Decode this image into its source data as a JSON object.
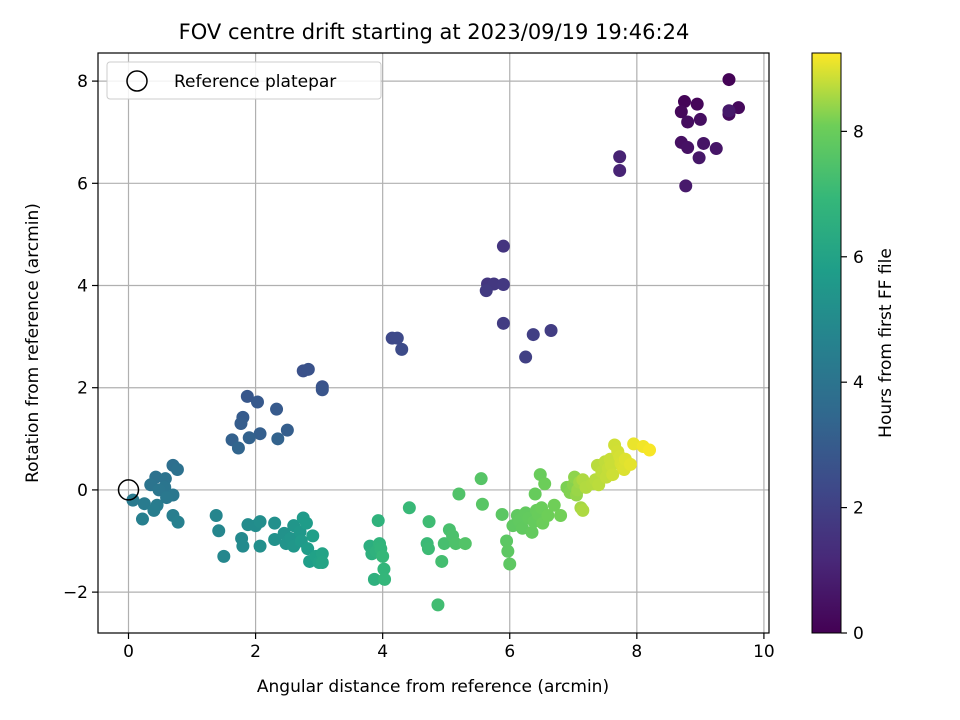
{
  "chart_data": {
    "type": "scatter",
    "title": "FOV centre drift starting at 2023/09/19 19:46:24",
    "xlabel": "Angular distance from reference (arcmin)",
    "ylabel": "Rotation from reference (arcmin)",
    "xlim": [
      -0.48,
      10.08
    ],
    "ylim": [
      -2.8,
      8.55
    ],
    "x_ticks": [
      0,
      2,
      4,
      6,
      8,
      10
    ],
    "y_ticks": [
      -2,
      0,
      2,
      4,
      6,
      8
    ],
    "x_tick_labels": [
      "0",
      "2",
      "4",
      "6",
      "8",
      "10"
    ],
    "y_tick_labels": [
      "−2",
      "0",
      "2",
      "4",
      "6",
      "8"
    ],
    "grid": true,
    "legend": {
      "placement": "upper-left",
      "entries": [
        {
          "label": "Reference platepar",
          "marker": "open-circle",
          "x": 0,
          "y": 0
        }
      ]
    },
    "colorbar": {
      "label": "Hours from first FF file",
      "colormap": "viridis",
      "range": [
        0,
        9.25
      ],
      "ticks": [
        0,
        2,
        4,
        6,
        8
      ],
      "tick_labels": [
        "0",
        "2",
        "4",
        "6",
        "8"
      ]
    },
    "points": [
      [
        9.45,
        8.03,
        0.05
      ],
      [
        8.75,
        7.6,
        0.1
      ],
      [
        8.95,
        7.55,
        0.15
      ],
      [
        8.7,
        7.4,
        0.2
      ],
      [
        9.6,
        7.48,
        0.25
      ],
      [
        9.45,
        7.35,
        0.3
      ],
      [
        8.8,
        7.2,
        0.35
      ],
      [
        9.0,
        7.25,
        0.4
      ],
      [
        8.7,
        6.8,
        0.45
      ],
      [
        8.8,
        6.7,
        0.5
      ],
      [
        9.05,
        6.78,
        0.55
      ],
      [
        9.25,
        6.68,
        0.6
      ],
      [
        8.98,
        6.5,
        0.65
      ],
      [
        9.45,
        7.42,
        0.7
      ],
      [
        8.77,
        5.95,
        0.75
      ],
      [
        7.73,
        6.52,
        1.0
      ],
      [
        7.73,
        6.25,
        1.05
      ],
      [
        5.9,
        4.77,
        1.6
      ],
      [
        5.65,
        4.03,
        1.65
      ],
      [
        5.75,
        4.03,
        1.7
      ],
      [
        5.9,
        4.02,
        1.75
      ],
      [
        5.63,
        3.9,
        1.8
      ],
      [
        5.9,
        3.26,
        1.85
      ],
      [
        6.65,
        3.12,
        1.9
      ],
      [
        6.37,
        3.04,
        1.95
      ],
      [
        6.25,
        2.6,
        2.0
      ],
      [
        4.15,
        2.97,
        2.3
      ],
      [
        4.23,
        2.97,
        2.35
      ],
      [
        4.3,
        2.75,
        2.4
      ],
      [
        2.75,
        2.33,
        2.6
      ],
      [
        2.83,
        2.36,
        2.65
      ],
      [
        3.05,
        2.02,
        2.7
      ],
      [
        3.05,
        1.96,
        2.75
      ],
      [
        1.87,
        1.83,
        2.85
      ],
      [
        2.03,
        1.72,
        2.9
      ],
      [
        2.33,
        1.58,
        2.95
      ],
      [
        1.8,
        1.42,
        3.0
      ],
      [
        1.77,
        1.3,
        3.05
      ],
      [
        2.5,
        1.17,
        3.1
      ],
      [
        2.07,
        1.1,
        3.15
      ],
      [
        1.63,
        0.98,
        3.2
      ],
      [
        1.9,
        1.02,
        3.25
      ],
      [
        2.35,
        1.0,
        3.3
      ],
      [
        1.73,
        0.82,
        3.35
      ],
      [
        0.7,
        0.48,
        3.8
      ],
      [
        0.77,
        0.4,
        3.85
      ],
      [
        0.43,
        0.25,
        3.9
      ],
      [
        0.58,
        0.22,
        3.95
      ],
      [
        0.35,
        0.1,
        4.0
      ],
      [
        0.57,
        0.05,
        4.05
      ],
      [
        0.48,
        0.0,
        4.1
      ],
      [
        0.7,
        -0.1,
        4.15
      ],
      [
        0.6,
        -0.15,
        4.2
      ],
      [
        0.07,
        -0.2,
        4.25
      ],
      [
        0.25,
        -0.27,
        4.3
      ],
      [
        0.45,
        -0.3,
        4.35
      ],
      [
        0.4,
        -0.4,
        4.4
      ],
      [
        0.7,
        -0.5,
        4.45
      ],
      [
        0.22,
        -0.57,
        4.5
      ],
      [
        0.78,
        -0.63,
        4.55
      ],
      [
        1.38,
        -0.5,
        4.75
      ],
      [
        1.42,
        -0.8,
        4.8
      ],
      [
        1.5,
        -1.3,
        4.85
      ],
      [
        1.78,
        -0.95,
        4.9
      ],
      [
        1.8,
        -1.1,
        4.95
      ],
      [
        1.88,
        -0.68,
        5.0
      ],
      [
        2.0,
        -0.7,
        5.05
      ],
      [
        2.07,
        -0.62,
        5.1
      ],
      [
        2.07,
        -1.1,
        5.15
      ],
      [
        2.3,
        -0.65,
        5.2
      ],
      [
        2.3,
        -0.97,
        5.25
      ],
      [
        2.45,
        -0.85,
        5.3
      ],
      [
        2.48,
        -1.05,
        5.35
      ],
      [
        2.55,
        -0.95,
        5.4
      ],
      [
        2.6,
        -0.7,
        5.45
      ],
      [
        2.6,
        -1.1,
        5.5
      ],
      [
        2.7,
        -0.82,
        5.55
      ],
      [
        2.72,
        -1.0,
        5.6
      ],
      [
        2.75,
        -0.55,
        5.65
      ],
      [
        2.8,
        -0.65,
        5.7
      ],
      [
        2.82,
        -1.15,
        5.75
      ],
      [
        2.85,
        -1.4,
        5.8
      ],
      [
        2.9,
        -0.9,
        5.85
      ],
      [
        2.95,
        -1.3,
        5.9
      ],
      [
        3.0,
        -1.42,
        5.95
      ],
      [
        3.05,
        -1.25,
        6.0
      ],
      [
        3.05,
        -1.42,
        6.05
      ],
      [
        3.8,
        -1.1,
        6.5
      ],
      [
        3.83,
        -1.25,
        6.55
      ],
      [
        3.87,
        -1.75,
        6.6
      ],
      [
        3.9,
        -1.2,
        6.65
      ],
      [
        3.93,
        -0.6,
        6.7
      ],
      [
        3.95,
        -1.05,
        6.75
      ],
      [
        3.97,
        -1.15,
        6.8
      ],
      [
        4.02,
        -1.55,
        6.85
      ],
      [
        4.03,
        -1.75,
        6.9
      ],
      [
        4.0,
        -1.3,
        6.95
      ],
      [
        4.42,
        -0.35,
        7.0
      ],
      [
        4.7,
        -1.05,
        7.05
      ],
      [
        4.72,
        -1.15,
        7.1
      ],
      [
        4.73,
        -0.62,
        7.15
      ],
      [
        4.87,
        -2.25,
        7.2
      ],
      [
        4.93,
        -1.4,
        7.25
      ],
      [
        4.97,
        -1.05,
        7.3
      ],
      [
        5.05,
        -0.78,
        7.35
      ],
      [
        5.1,
        -0.9,
        7.4
      ],
      [
        5.15,
        -1.05,
        7.45
      ],
      [
        5.2,
        -0.08,
        7.5
      ],
      [
        5.3,
        -1.05,
        7.55
      ],
      [
        5.55,
        0.22,
        7.6
      ],
      [
        5.57,
        -0.28,
        7.65
      ],
      [
        5.88,
        -0.48,
        7.7
      ],
      [
        5.95,
        -1.0,
        7.72
      ],
      [
        5.97,
        -1.2,
        7.74
      ],
      [
        6.0,
        -1.45,
        7.76
      ],
      [
        6.05,
        -0.7,
        7.78
      ],
      [
        6.12,
        -0.5,
        7.8
      ],
      [
        6.15,
        -0.6,
        7.82
      ],
      [
        6.2,
        -0.75,
        7.84
      ],
      [
        6.25,
        -0.45,
        7.86
      ],
      [
        6.3,
        -0.55,
        7.88
      ],
      [
        6.35,
        -0.83,
        7.9
      ],
      [
        6.38,
        -0.62,
        7.92
      ],
      [
        6.4,
        -0.08,
        7.94
      ],
      [
        6.42,
        -0.4,
        7.96
      ],
      [
        6.45,
        -0.48,
        7.98
      ],
      [
        6.48,
        0.3,
        8.0
      ],
      [
        6.5,
        -0.35,
        8.02
      ],
      [
        6.52,
        -0.65,
        8.04
      ],
      [
        6.55,
        0.12,
        8.06
      ],
      [
        6.6,
        -0.5,
        8.08
      ],
      [
        6.7,
        -0.3,
        8.1
      ],
      [
        6.8,
        -0.5,
        8.12
      ],
      [
        6.9,
        0.05,
        8.2
      ],
      [
        6.95,
        -0.05,
        8.25
      ],
      [
        7.0,
        0.1,
        8.3
      ],
      [
        7.02,
        0.25,
        8.35
      ],
      [
        7.05,
        -0.1,
        8.4
      ],
      [
        7.07,
        0.0,
        8.45
      ],
      [
        7.1,
        0.15,
        8.5
      ],
      [
        7.12,
        -0.35,
        8.55
      ],
      [
        7.15,
        -0.4,
        8.6
      ],
      [
        7.15,
        0.2,
        8.62
      ],
      [
        7.2,
        0.05,
        8.64
      ],
      [
        7.3,
        0.12,
        8.66
      ],
      [
        7.35,
        0.2,
        8.68
      ],
      [
        7.38,
        0.48,
        8.7
      ],
      [
        7.4,
        0.1,
        8.72
      ],
      [
        7.45,
        0.35,
        8.74
      ],
      [
        7.5,
        0.55,
        8.76
      ],
      [
        7.52,
        0.25,
        8.78
      ],
      [
        7.55,
        0.42,
        8.8
      ],
      [
        7.58,
        0.6,
        8.82
      ],
      [
        7.6,
        0.48,
        8.84
      ],
      [
        7.62,
        0.3,
        8.86
      ],
      [
        7.65,
        0.88,
        8.88
      ],
      [
        7.7,
        0.75,
        8.9
      ],
      [
        7.73,
        0.65,
        8.92
      ],
      [
        7.75,
        0.52,
        8.94
      ],
      [
        7.78,
        0.45,
        8.96
      ],
      [
        7.8,
        0.4,
        8.98
      ],
      [
        7.82,
        0.6,
        9.0
      ],
      [
        7.9,
        0.5,
        9.05
      ],
      [
        7.95,
        0.9,
        9.1
      ],
      [
        8.1,
        0.85,
        9.15
      ],
      [
        8.2,
        0.78,
        9.2
      ]
    ]
  }
}
